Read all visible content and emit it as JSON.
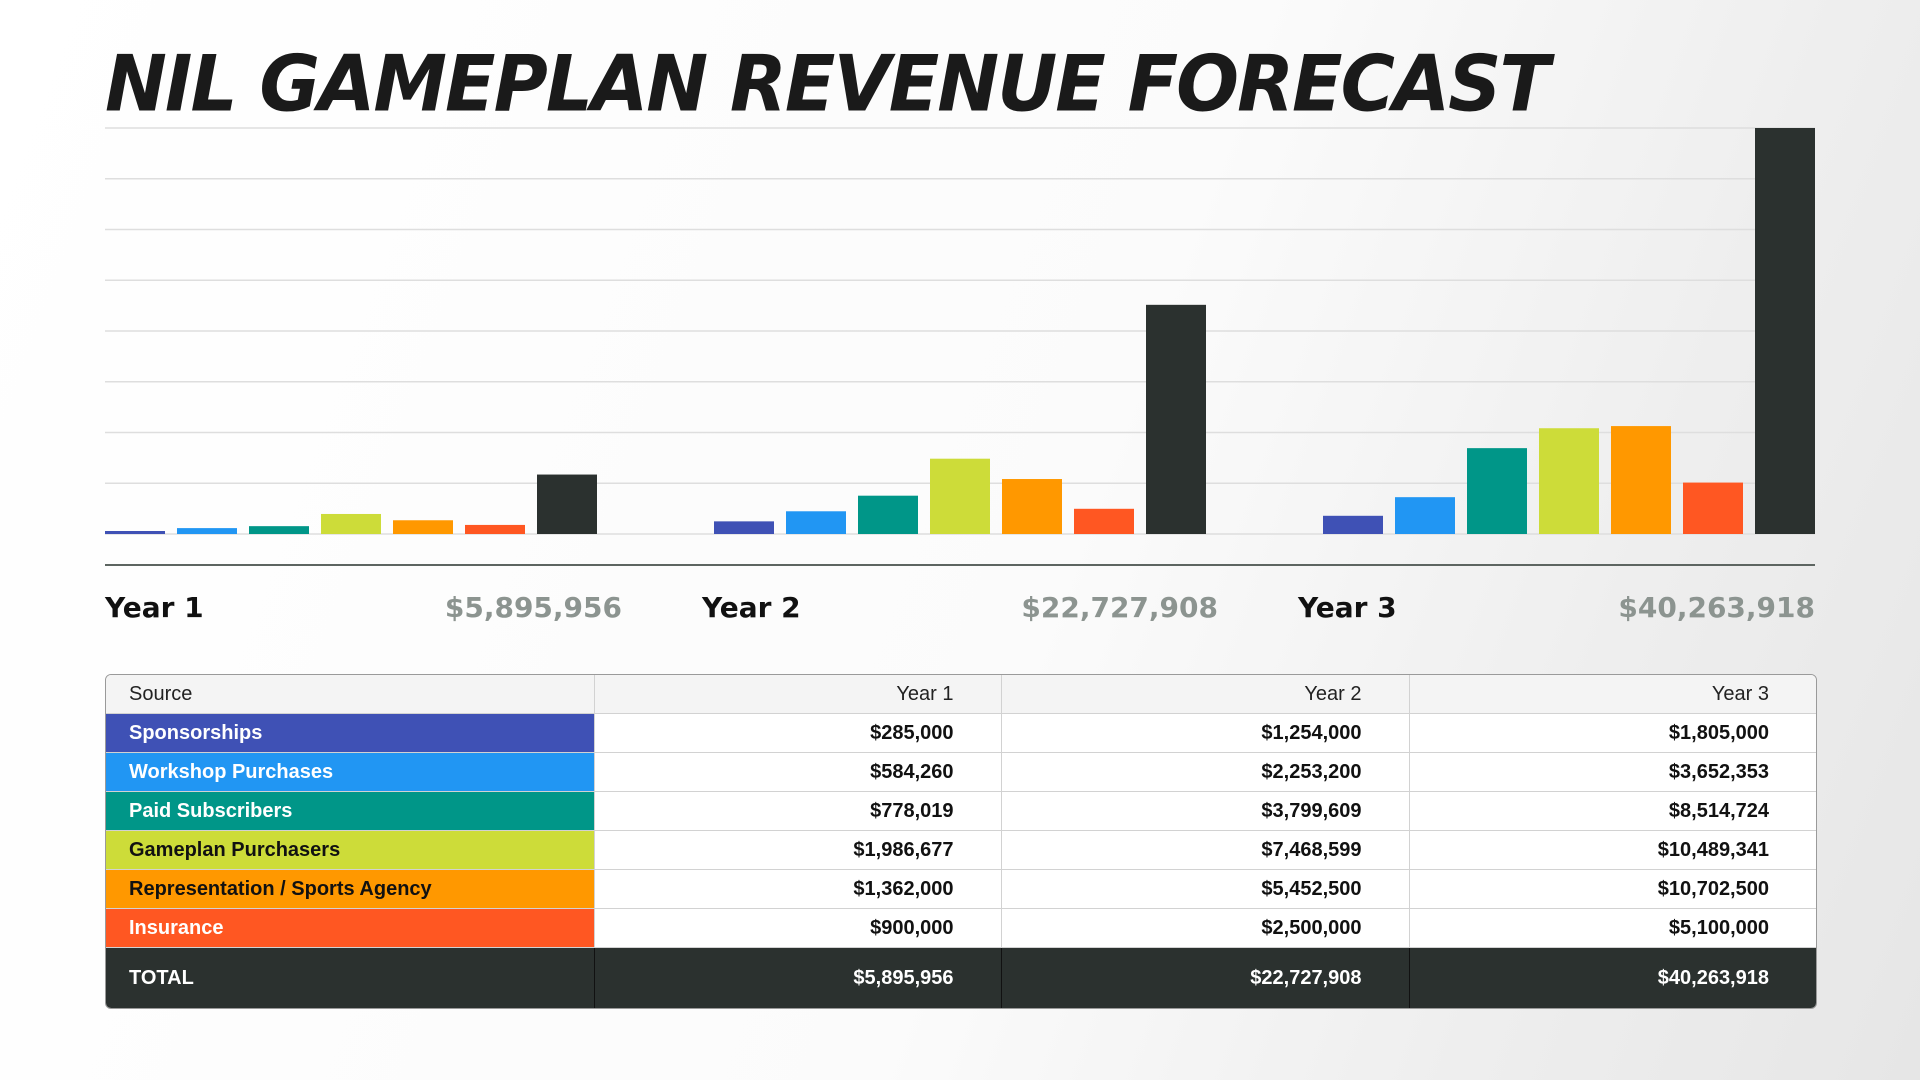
{
  "title": "NIL GAMEPLAN REVENUE FORECAST",
  "colors": {
    "sponsorships": "#3f51b5",
    "workshop": "#2196f3",
    "subscribers": "#009688",
    "gameplan": "#cddc39",
    "representation": "#ff9800",
    "insurance": "#ff5722",
    "total": "#2b312f"
  },
  "year_summaries": [
    {
      "label": "Year 1",
      "total": "$5,895,956"
    },
    {
      "label": "Year 2",
      "total": "$22,727,908"
    },
    {
      "label": "Year 3",
      "total": "$40,263,918"
    }
  ],
  "table": {
    "headers": [
      "Source",
      "Year 1",
      "Year 2",
      "Year 3"
    ],
    "rows": [
      {
        "source": "Sponsorships",
        "color": "#3f51b5",
        "text_color": "#ffffff",
        "values": [
          "$285,000",
          "$1,254,000",
          "$1,805,000"
        ]
      },
      {
        "source": "Workshop Purchases",
        "color": "#2196f3",
        "text_color": "#ffffff",
        "values": [
          "$584,260",
          "$2,253,200",
          "$3,652,353"
        ]
      },
      {
        "source": "Paid Subscribers",
        "color": "#009688",
        "text_color": "#ffffff",
        "values": [
          "$778,019",
          "$3,799,609",
          "$8,514,724"
        ]
      },
      {
        "source": "Gameplan Purchasers",
        "color": "#cddc39",
        "text_color": "#111111",
        "values": [
          "$1,986,677",
          "$7,468,599",
          "$10,489,341"
        ]
      },
      {
        "source": "Representation / Sports Agency",
        "color": "#ff9800",
        "text_color": "#111111",
        "values": [
          "$1,362,000",
          "$5,452,500",
          "$10,702,500"
        ]
      },
      {
        "source": "Insurance",
        "color": "#ff5722",
        "text_color": "#ffffff",
        "values": [
          "$900,000",
          "$2,500,000",
          "$5,100,000"
        ]
      }
    ],
    "total": {
      "label": "TOTAL",
      "values": [
        "$5,895,956",
        "$22,727,908",
        "$40,263,918"
      ]
    }
  },
  "chart_data": {
    "type": "bar",
    "categories": [
      "Year 1",
      "Year 2",
      "Year 3"
    ],
    "series": [
      {
        "name": "Sponsorships",
        "color": "#3f51b5",
        "values": [
          285000,
          1254000,
          1805000
        ]
      },
      {
        "name": "Workshop Purchases",
        "color": "#2196f3",
        "values": [
          584260,
          2253200,
          3652353
        ]
      },
      {
        "name": "Paid Subscribers",
        "color": "#009688",
        "values": [
          778019,
          3799609,
          8514724
        ]
      },
      {
        "name": "Gameplan Purchasers",
        "color": "#cddc39",
        "values": [
          1986677,
          7468599,
          10489341
        ]
      },
      {
        "name": "Representation / Sports Agency",
        "color": "#ff9800",
        "values": [
          1362000,
          5452500,
          10702500
        ]
      },
      {
        "name": "Insurance",
        "color": "#ff5722",
        "values": [
          900000,
          2500000,
          5100000
        ]
      },
      {
        "name": "TOTAL",
        "color": "#2b312f",
        "values": [
          5895956,
          22727908,
          40263918
        ]
      }
    ],
    "ylim": [
      0,
      40263918
    ],
    "gridlines": 9,
    "grid": true,
    "legend": "none"
  }
}
